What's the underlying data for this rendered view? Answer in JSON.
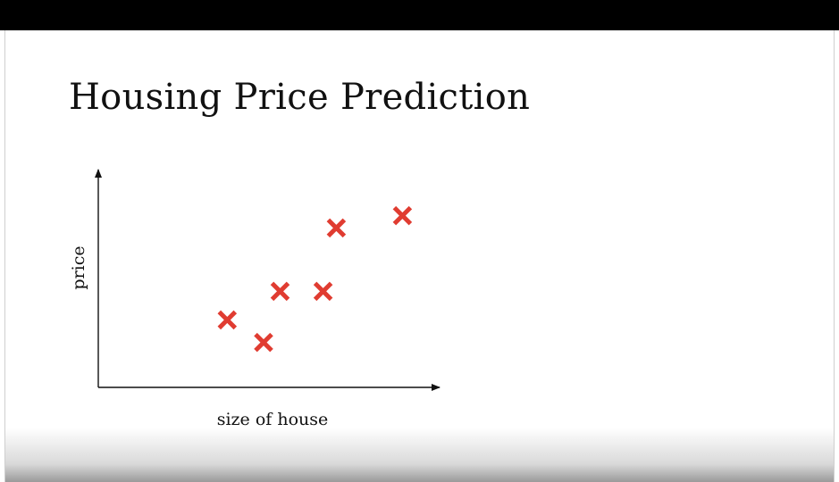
{
  "slide": {
    "title": "Housing Price Prediction"
  },
  "chart_data": {
    "type": "scatter",
    "title": "Housing Price Prediction",
    "xlabel": "size of house",
    "ylabel": "price",
    "axis_ticks": false,
    "grid": false,
    "legend": "none",
    "xlim": [
      0,
      10
    ],
    "ylim": [
      0,
      10
    ],
    "marker": "x",
    "marker_color": "#e03c31",
    "series": [
      {
        "points": [
          {
            "x": 3.9,
            "y": 3.3
          },
          {
            "x": 5.0,
            "y": 2.2
          },
          {
            "x": 5.5,
            "y": 4.7
          },
          {
            "x": 6.8,
            "y": 4.7
          },
          {
            "x": 7.2,
            "y": 7.8
          },
          {
            "x": 9.2,
            "y": 8.4
          }
        ]
      }
    ]
  }
}
